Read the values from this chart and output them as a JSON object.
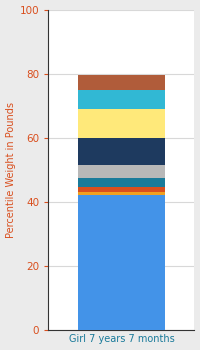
{
  "category": "Girl 7 years 7 months",
  "segments": [
    {
      "value": 42.0,
      "color": "#4393e8"
    },
    {
      "value": 1.0,
      "color": "#f0a020"
    },
    {
      "value": 1.5,
      "color": "#d94f1e"
    },
    {
      "value": 3.0,
      "color": "#1a7b9a"
    },
    {
      "value": 4.0,
      "color": "#b8b8b8"
    },
    {
      "value": 8.5,
      "color": "#1e3a5f"
    },
    {
      "value": 9.0,
      "color": "#ffe97a"
    },
    {
      "value": 6.0,
      "color": "#31b8d4"
    },
    {
      "value": 4.5,
      "color": "#b05c3a"
    }
  ],
  "ylim": [
    0,
    100
  ],
  "yticks": [
    0,
    20,
    40,
    60,
    80,
    100
  ],
  "ylabel": "Percentile Weight in Pounds",
  "xlabel": "Girl 7 years 7 months",
  "figure_bg": "#ebebeb",
  "plot_bg": "#ffffff",
  "bar_width": 0.6,
  "ylabel_color": "#d94f1e",
  "xlabel_color": "#1a7a9a",
  "tick_color": "#d94f1e",
  "grid_color": "#d8d8d8",
  "spine_color": "#333333"
}
